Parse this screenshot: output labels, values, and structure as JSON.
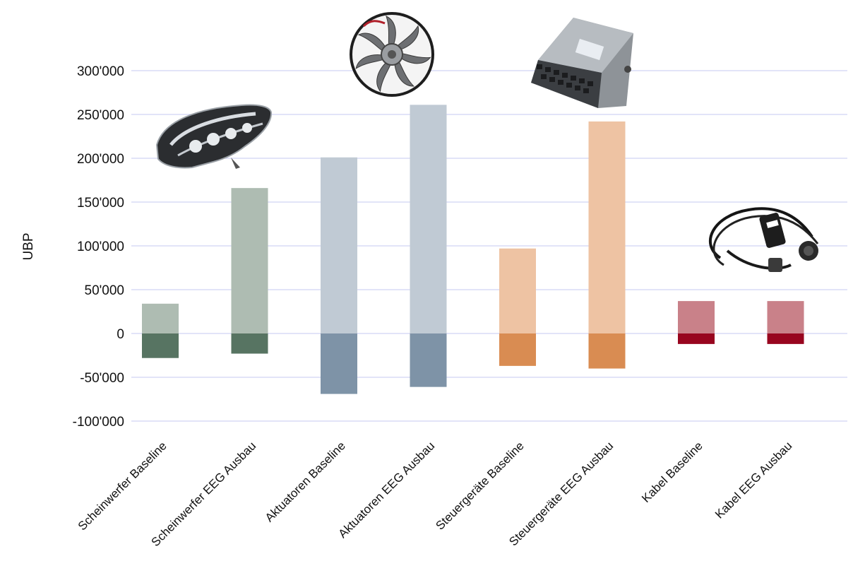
{
  "chart_data": {
    "type": "bar",
    "title": "",
    "xlabel": "",
    "ylabel": "UBP",
    "ylim": [
      -100000,
      300000
    ],
    "yticks": [
      300000,
      250000,
      200000,
      150000,
      100000,
      50000,
      0,
      -50000,
      -100000
    ],
    "ytick_labels": [
      "300'000",
      "250'000",
      "200'000",
      "150'000",
      "100'000",
      "50'000",
      "0",
      "-50'000",
      "-100'000"
    ],
    "grid": true,
    "categories": [
      "Scheinwerfer Baseline",
      "Scheinwerfer EEG Ausbau",
      "Aktuatoren Baseline",
      "Aktuatoren EEG Ausbau",
      "Steuergeräte Baseline",
      "Steuergeräte EEG Ausbau",
      "Kabel Baseline",
      "Kabel EEG Ausbau"
    ],
    "series": [
      {
        "values": [
          34000,
          166000,
          201000,
          261000,
          97000,
          242000,
          37000,
          37000
        ]
      },
      {
        "values": [
          -28000,
          -23000,
          -69000,
          -61000,
          -37000,
          -40000,
          -12000,
          -12000
        ]
      }
    ],
    "colors": {
      "positive": [
        "#aebcb2",
        "#aebcb2",
        "#c0cad4",
        "#c0cad4",
        "#eec3a3",
        "#eec3a3",
        "#c98189",
        "#c98189"
      ],
      "negative": [
        "#577462",
        "#577462",
        "#7e93a7",
        "#7e93a7",
        "#d98c52",
        "#d98c52",
        "#98051f",
        "#98051f"
      ]
    },
    "product_images": [
      "headlight",
      "radiator-fan",
      "control-unit",
      "charging-cable"
    ]
  }
}
